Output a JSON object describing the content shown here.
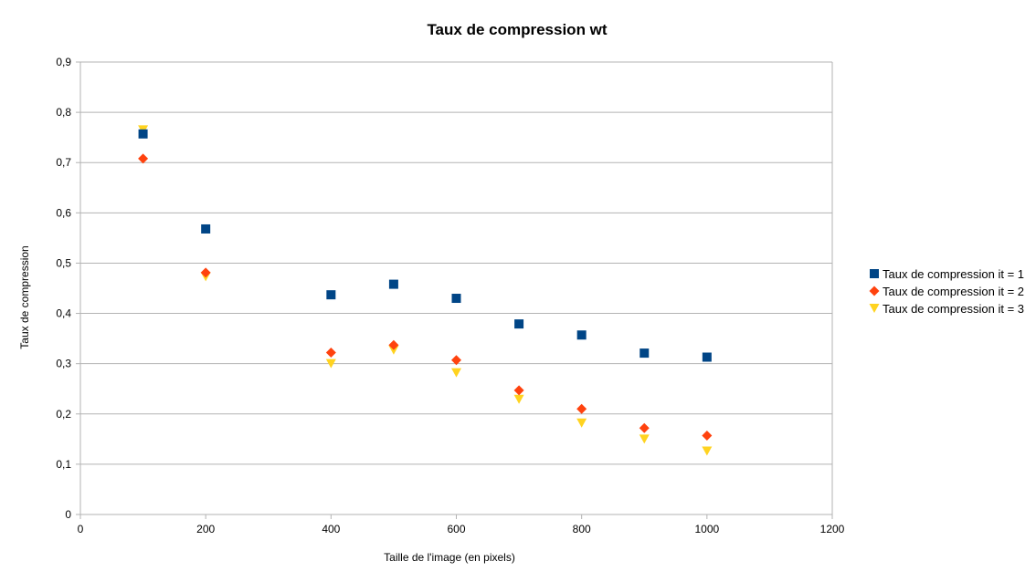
{
  "chart_data": {
    "type": "scatter",
    "title": "Taux de compression wt",
    "xlabel": "Taille de l'image (en pixels)",
    "ylabel": "Taux de compression",
    "xlim": [
      0,
      1200
    ],
    "ylim": [
      0,
      0.9
    ],
    "x_ticks": [
      "0",
      "200",
      "400",
      "600",
      "800",
      "1000",
      "1200"
    ],
    "y_ticks": [
      "0",
      "0,1",
      "0,2",
      "0,3",
      "0,4",
      "0,5",
      "0,6",
      "0,7",
      "0,8",
      "0,9"
    ],
    "grid": "horizontal",
    "legend_position": "right",
    "series": [
      {
        "name": "Taux de compression it = 1",
        "marker": "square",
        "color": "#004586",
        "points": [
          {
            "x": 100,
            "y": 0.757
          },
          {
            "x": 200,
            "y": 0.568
          },
          {
            "x": 400,
            "y": 0.437
          },
          {
            "x": 500,
            "y": 0.458
          },
          {
            "x": 600,
            "y": 0.43
          },
          {
            "x": 700,
            "y": 0.379
          },
          {
            "x": 800,
            "y": 0.357
          },
          {
            "x": 900,
            "y": 0.321
          },
          {
            "x": 1000,
            "y": 0.313
          }
        ]
      },
      {
        "name": "Taux de compression it = 2",
        "marker": "diamond",
        "color": "#ff420e",
        "points": [
          {
            "x": 100,
            "y": 0.708
          },
          {
            "x": 200,
            "y": 0.481
          },
          {
            "x": 400,
            "y": 0.322
          },
          {
            "x": 500,
            "y": 0.337
          },
          {
            "x": 600,
            "y": 0.307
          },
          {
            "x": 700,
            "y": 0.247
          },
          {
            "x": 800,
            "y": 0.21
          },
          {
            "x": 900,
            "y": 0.172
          },
          {
            "x": 1000,
            "y": 0.157
          }
        ]
      },
      {
        "name": "Taux de compression it = 3",
        "marker": "triangle-down",
        "color": "#ffd320",
        "points": [
          {
            "x": 100,
            "y": 0.765
          },
          {
            "x": 200,
            "y": 0.473
          },
          {
            "x": 400,
            "y": 0.3
          },
          {
            "x": 500,
            "y": 0.327
          },
          {
            "x": 600,
            "y": 0.282
          },
          {
            "x": 700,
            "y": 0.229
          },
          {
            "x": 800,
            "y": 0.182
          },
          {
            "x": 900,
            "y": 0.15
          },
          {
            "x": 1000,
            "y": 0.126
          }
        ]
      }
    ]
  }
}
